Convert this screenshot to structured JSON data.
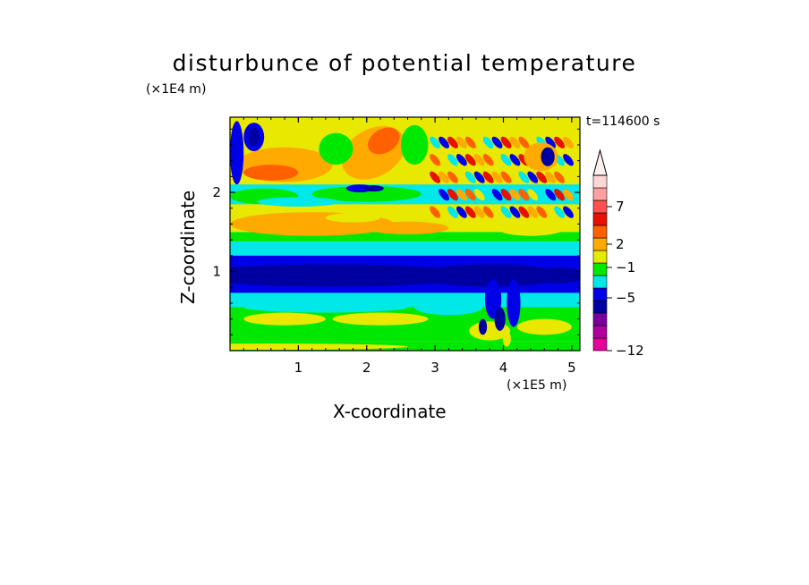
{
  "chart_data": {
    "type": "heatmap",
    "title": "disturbunce of potential temperature",
    "xlabel": "X-coordinate",
    "ylabel": "Z-coordinate",
    "x_unit": "(×1E5 m)",
    "y_unit": "(×1E4 m)",
    "annotation": "t=114600 s",
    "xlim": [
      0,
      5.12
    ],
    "ylim": [
      0,
      2.95
    ],
    "x_ticks": [
      "1",
      "2",
      "3",
      "4",
      "5"
    ],
    "y_ticks": [
      "1",
      "2"
    ],
    "colorbar": {
      "tick_labels": [
        "7",
        "2",
        "−1",
        "−5",
        "−12"
      ],
      "colors": [
        "#e8009a",
        "#b0009e",
        "#7a009e",
        "#0000a0",
        "#0000e8",
        "#00e8e8",
        "#00e800",
        "#e8e800",
        "#ffaa00",
        "#ff6000",
        "#e81000",
        "#ff5050",
        "#ffa0a0",
        "#ffd6d6"
      ],
      "extend": "max"
    }
  }
}
